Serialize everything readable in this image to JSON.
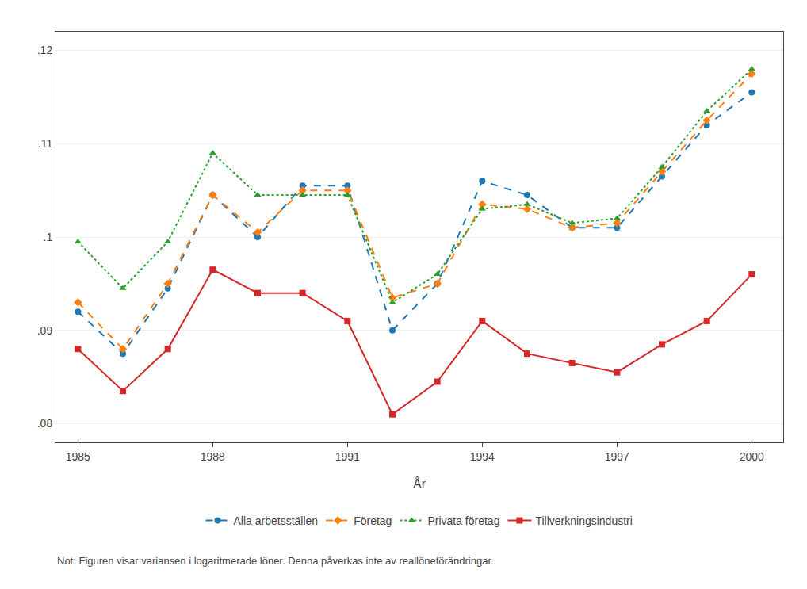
{
  "chart_data": {
    "type": "line",
    "x": [
      1985,
      1986,
      1987,
      1988,
      1989,
      1990,
      1991,
      1992,
      1993,
      1994,
      1995,
      1996,
      1997,
      1998,
      1999,
      2000
    ],
    "series": [
      {
        "name": "Alla arbetsställen",
        "marker": "circle",
        "line_style": "dashed",
        "values": [
          0.092,
          0.0875,
          0.0945,
          0.1045,
          0.1,
          0.1055,
          0.1055,
          0.09,
          0.095,
          0.106,
          0.1045,
          0.101,
          0.101,
          0.1065,
          0.112,
          0.1155
        ]
      },
      {
        "name": "Företag",
        "marker": "diamond",
        "line_style": "dashed",
        "values": [
          0.093,
          0.088,
          0.095,
          0.1045,
          0.1005,
          0.105,
          0.105,
          0.0935,
          0.095,
          0.1035,
          0.103,
          0.101,
          0.1015,
          0.107,
          0.1125,
          0.1175
        ]
      },
      {
        "name": "Privata företag",
        "marker": "triangle",
        "line_style": "dotted",
        "values": [
          0.0995,
          0.0945,
          0.0995,
          0.109,
          0.1045,
          0.1045,
          0.1045,
          0.093,
          0.096,
          0.103,
          0.1035,
          0.1015,
          0.102,
          0.1075,
          0.1135,
          0.118
        ]
      },
      {
        "name": "Tillverkningsindustri",
        "marker": "square",
        "line_style": "solid",
        "values": [
          0.088,
          0.0835,
          0.088,
          0.0965,
          0.094,
          0.094,
          0.091,
          0.081,
          0.0845,
          0.091,
          0.0875,
          0.0865,
          0.0855,
          0.0885,
          0.091,
          0.096
        ]
      }
    ],
    "xlabel": "År",
    "xlim": [
      1984.5,
      2000.7
    ],
    "xticks": [
      1985,
      1988,
      1991,
      1994,
      1997,
      2000
    ],
    "ylim": [
      0.078,
      0.122
    ],
    "yticks": [
      {
        "value": 0.08,
        "label": ".08"
      },
      {
        "value": 0.09,
        "label": ".09"
      },
      {
        "value": 0.1,
        "label": ".1"
      },
      {
        "value": 0.11,
        "label": ".11"
      },
      {
        "value": 0.12,
        "label": ".12"
      }
    ],
    "grid": "y",
    "legend": "bottom",
    "annotations": [
      "Not: Figuren visar variansen i logaritmerade löner. Denna påverkas inte av reallöneförändringar."
    ]
  }
}
